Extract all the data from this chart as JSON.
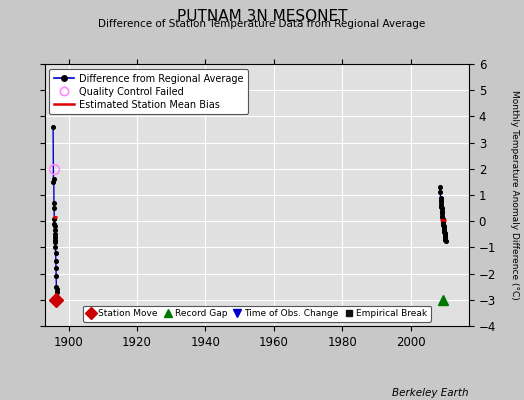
{
  "title": "PUTNAM 3N MESONET",
  "subtitle": "Difference of Station Temperature Data from Regional Average",
  "ylabel_right": "Monthly Temperature Anomaly Difference (°C)",
  "credit": "Berkeley Earth",
  "xlim": [
    1893,
    2017
  ],
  "ylim": [
    -4,
    6
  ],
  "yticks": [
    -4,
    -3,
    -2,
    -1,
    0,
    1,
    2,
    3,
    4,
    5,
    6
  ],
  "xticks": [
    1900,
    1920,
    1940,
    1960,
    1980,
    2000
  ],
  "bg_color": "#c8c8c8",
  "plot_bg_color": "#e0e0e0",
  "grid_color": "#ffffff",
  "early_data": [
    [
      1895.5,
      3.6
    ],
    [
      1895.6,
      1.5
    ],
    [
      1895.7,
      1.6
    ],
    [
      1895.75,
      0.7
    ],
    [
      1895.8,
      0.5
    ],
    [
      1895.85,
      0.1
    ],
    [
      1895.9,
      -0.1
    ],
    [
      1895.92,
      -0.2
    ],
    [
      1895.95,
      -0.35
    ],
    [
      1896.0,
      -0.5
    ],
    [
      1896.05,
      -0.6
    ],
    [
      1896.1,
      -0.7
    ],
    [
      1896.15,
      -0.8
    ],
    [
      1896.2,
      -1.0
    ],
    [
      1896.25,
      -1.2
    ],
    [
      1896.3,
      -1.5
    ],
    [
      1896.35,
      -1.8
    ],
    [
      1896.4,
      -2.1
    ],
    [
      1896.45,
      -2.5
    ],
    [
      1896.5,
      -2.6
    ],
    [
      1896.55,
      -2.7
    ]
  ],
  "early_bias_y": 0.15,
  "early_qc_points": [
    [
      1895.7,
      2.0
    ]
  ],
  "modern_data": [
    [
      2008.5,
      1.3
    ],
    [
      2008.6,
      1.1
    ],
    [
      2008.7,
      0.9
    ],
    [
      2008.8,
      0.8
    ],
    [
      2008.85,
      0.75
    ],
    [
      2008.9,
      0.6
    ],
    [
      2008.95,
      0.55
    ],
    [
      2009.0,
      0.5
    ],
    [
      2009.05,
      0.4
    ],
    [
      2009.1,
      0.35
    ],
    [
      2009.15,
      0.3
    ],
    [
      2009.2,
      0.2
    ],
    [
      2009.25,
      0.15
    ],
    [
      2009.3,
      0.1
    ],
    [
      2009.35,
      0.05
    ],
    [
      2009.4,
      0.0
    ],
    [
      2009.45,
      -0.05
    ],
    [
      2009.5,
      -0.1
    ],
    [
      2009.55,
      -0.15
    ],
    [
      2009.6,
      -0.2
    ],
    [
      2009.65,
      -0.25
    ],
    [
      2009.7,
      -0.3
    ],
    [
      2009.75,
      -0.35
    ],
    [
      2009.8,
      -0.4
    ],
    [
      2009.85,
      -0.45
    ],
    [
      2009.9,
      -0.5
    ],
    [
      2009.95,
      -0.55
    ],
    [
      2010.0,
      -0.6
    ],
    [
      2010.05,
      -0.65
    ],
    [
      2010.1,
      -0.7
    ],
    [
      2010.15,
      -0.75
    ]
  ],
  "modern_bias_y": 0.05,
  "station_move_x": 1896.45,
  "station_move_y": -3.0,
  "record_gap_x": 2009.5,
  "record_gap_y": -3.0,
  "colors": {
    "line": "#0000cc",
    "dot": "#000000",
    "qc": "#ff88ff",
    "bias": "#dd0000",
    "station_move": "#cc0000",
    "record_gap": "#007700",
    "obs_change": "#0000cc",
    "emp_break": "#111111"
  }
}
